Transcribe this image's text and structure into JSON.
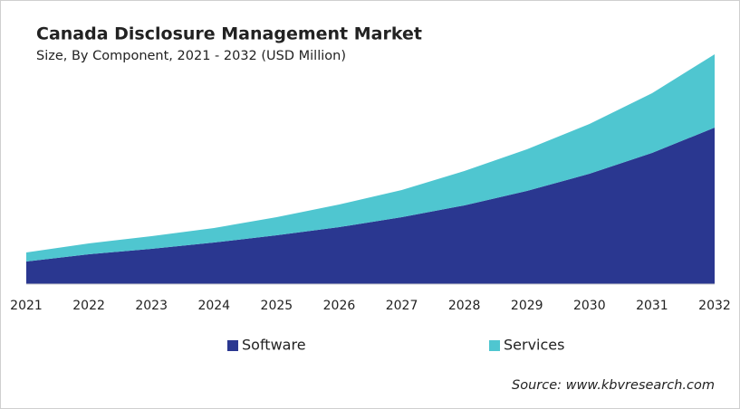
{
  "chart_data": {
    "type": "stacked-area",
    "title": "Canada Disclosure Management Market",
    "subtitle": "Size, By Component, 2021 - 2032 (USD Million)",
    "categories": [
      "2021",
      "2022",
      "2023",
      "2024",
      "2025",
      "2026",
      "2027",
      "2028",
      "2029",
      "2030",
      "2031",
      "2032"
    ],
    "series": [
      {
        "name": "Software",
        "color": "#2a3790",
        "values": [
          25,
          33,
          39,
          46,
          54,
          63,
          74,
          87,
          103,
          122,
          145,
          173
        ]
      },
      {
        "name": "Services",
        "color": "#4fc6d0",
        "values": [
          10,
          12,
          14,
          16,
          20,
          25,
          30,
          38,
          46,
          55,
          66,
          81
        ]
      }
    ],
    "source": "Source: www.kbvresearch.com"
  }
}
